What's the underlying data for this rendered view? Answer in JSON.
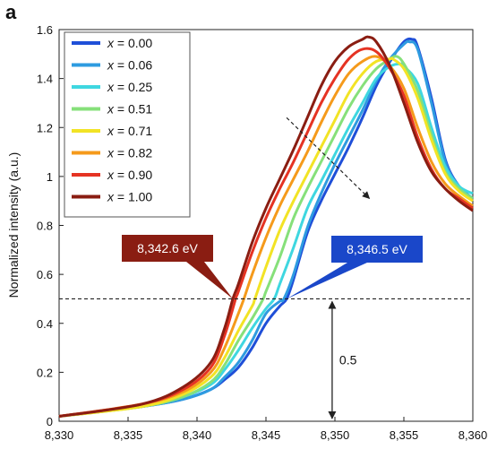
{
  "panel_label": "a",
  "chart_data": {
    "type": "line",
    "title": "",
    "xlabel": "",
    "ylabel": "Normalized intensity (a.u.)",
    "xlim": [
      8330,
      8360
    ],
    "ylim": [
      0,
      1.6
    ],
    "x_ticks": [
      8330,
      8335,
      8340,
      8345,
      8350,
      8355,
      8360
    ],
    "x_tick_labels": [
      "8,330",
      "8,335",
      "8,340",
      "8,345",
      "8,350",
      "8,355",
      "8,360"
    ],
    "y_ticks": [
      0,
      0.2,
      0.4,
      0.6,
      0.8,
      1.0,
      1.2,
      1.4,
      1.6
    ],
    "y_tick_labels": [
      "0",
      "0.2",
      "0.4",
      "0.6",
      "0.8",
      "1",
      "1.2",
      "1.4",
      "1.6"
    ],
    "legend_position": "top-left",
    "series": [
      {
        "name": "x = 0.00",
        "var": "x",
        "val": "0.00",
        "color": "#1f4fd8",
        "x": [
          8330,
          8336,
          8339,
          8341,
          8342,
          8343,
          8344,
          8345,
          8346,
          8346.5,
          8347,
          8348,
          8349,
          8350,
          8351,
          8352,
          8353,
          8354,
          8355,
          8355.6,
          8356,
          8357,
          8358,
          8359,
          8360
        ],
        "y": [
          0.02,
          0.06,
          0.09,
          0.13,
          0.17,
          0.22,
          0.3,
          0.4,
          0.47,
          0.5,
          0.58,
          0.77,
          0.9,
          1.01,
          1.12,
          1.24,
          1.37,
          1.47,
          1.55,
          1.56,
          1.53,
          1.32,
          1.07,
          0.96,
          0.91
        ]
      },
      {
        "name": "x = 0.06",
        "var": "x",
        "val": "0.06",
        "color": "#2e9be0",
        "x": [
          8330,
          8336,
          8339,
          8341,
          8342,
          8343,
          8344,
          8345,
          8346,
          8346.3,
          8347,
          8348,
          8349,
          8350,
          8351,
          8352,
          8353,
          8354,
          8355,
          8355.4,
          8356,
          8357,
          8358,
          8359,
          8360
        ],
        "y": [
          0.02,
          0.06,
          0.09,
          0.13,
          0.18,
          0.24,
          0.33,
          0.44,
          0.49,
          0.5,
          0.6,
          0.79,
          0.93,
          1.05,
          1.16,
          1.27,
          1.39,
          1.48,
          1.54,
          1.55,
          1.52,
          1.3,
          1.06,
          0.96,
          0.91
        ]
      },
      {
        "name": "x = 0.25",
        "var": "x",
        "val": "0.25",
        "color": "#3fd7e0",
        "x": [
          8330,
          8336,
          8339,
          8341,
          8342,
          8343,
          8344,
          8345,
          8345.6,
          8346,
          8347,
          8348,
          8349,
          8350,
          8351,
          8352,
          8353,
          8354,
          8354.8,
          8355,
          8356,
          8357,
          8358,
          8359,
          8360
        ],
        "y": [
          0.02,
          0.06,
          0.1,
          0.15,
          0.21,
          0.29,
          0.38,
          0.46,
          0.5,
          0.56,
          0.71,
          0.87,
          0.98,
          1.09,
          1.2,
          1.3,
          1.4,
          1.45,
          1.46,
          1.45,
          1.38,
          1.2,
          1.04,
          0.96,
          0.93
        ]
      },
      {
        "name": "x = 0.51",
        "var": "x",
        "val": "0.51",
        "color": "#86e07a",
        "x": [
          8330,
          8336,
          8339,
          8341,
          8342,
          8343,
          8344,
          8344.8,
          8345,
          8346,
          8347,
          8348,
          8349,
          8350,
          8351,
          8352,
          8353,
          8354,
          8354.5,
          8355,
          8356,
          8357,
          8358,
          8359,
          8360
        ],
        "y": [
          0.02,
          0.06,
          0.1,
          0.16,
          0.23,
          0.33,
          0.42,
          0.5,
          0.53,
          0.67,
          0.83,
          0.95,
          1.06,
          1.17,
          1.28,
          1.37,
          1.44,
          1.48,
          1.49,
          1.46,
          1.35,
          1.17,
          1.02,
          0.95,
          0.91
        ]
      },
      {
        "name": "x = 0.71",
        "var": "x",
        "val": "0.71",
        "color": "#f2e325",
        "x": [
          8330,
          8336,
          8339,
          8341,
          8342,
          8343,
          8344,
          8344.2,
          8345,
          8346,
          8347,
          8348,
          8349,
          8350,
          8351,
          8352,
          8353,
          8354,
          8354.2,
          8355,
          8356,
          8357,
          8358,
          8359,
          8360
        ],
        "y": [
          0.02,
          0.06,
          0.11,
          0.18,
          0.26,
          0.37,
          0.47,
          0.5,
          0.63,
          0.78,
          0.9,
          1.01,
          1.12,
          1.23,
          1.34,
          1.42,
          1.47,
          1.48,
          1.48,
          1.44,
          1.32,
          1.15,
          1.01,
          0.94,
          0.9
        ]
      },
      {
        "name": "x = 0.82",
        "var": "x",
        "val": "0.82",
        "color": "#f59a1b",
        "x": [
          8330,
          8336,
          8339,
          8341,
          8342,
          8343,
          8343.4,
          8344,
          8345,
          8346,
          8347,
          8348,
          8349,
          8350,
          8351,
          8352,
          8353,
          8354,
          8355,
          8356,
          8357,
          8358,
          8359,
          8360
        ],
        "y": [
          0.02,
          0.07,
          0.12,
          0.2,
          0.3,
          0.44,
          0.5,
          0.6,
          0.75,
          0.88,
          0.99,
          1.1,
          1.22,
          1.33,
          1.42,
          1.47,
          1.49,
          1.45,
          1.36,
          1.2,
          1.06,
          0.97,
          0.92,
          0.88
        ]
      },
      {
        "name": "x = 0.90",
        "var": "x",
        "val": "0.90",
        "color": "#e53323",
        "x": [
          8330,
          8336,
          8339,
          8341,
          8342,
          8342.8,
          8343,
          8344,
          8345,
          8346,
          8347,
          8348,
          8349,
          8350,
          8351,
          8352,
          8353,
          8354,
          8355,
          8356,
          8357,
          8358,
          8359,
          8360
        ],
        "y": [
          0.02,
          0.07,
          0.13,
          0.22,
          0.35,
          0.5,
          0.53,
          0.69,
          0.83,
          0.95,
          1.06,
          1.18,
          1.3,
          1.4,
          1.48,
          1.52,
          1.51,
          1.44,
          1.33,
          1.16,
          1.03,
          0.95,
          0.91,
          0.87
        ]
      },
      {
        "name": "x = 1.00",
        "var": "x",
        "val": "1.00",
        "color": "#8a1d12",
        "x": [
          8330,
          8336,
          8339,
          8341,
          8342,
          8342.6,
          8343,
          8344,
          8345,
          8346,
          8347,
          8348,
          8349,
          8350,
          8351,
          8352,
          8352.4,
          8353,
          8354,
          8355,
          8356,
          8357,
          8358,
          8359,
          8360
        ],
        "y": [
          0.02,
          0.07,
          0.14,
          0.24,
          0.38,
          0.5,
          0.56,
          0.73,
          0.87,
          0.99,
          1.11,
          1.24,
          1.37,
          1.47,
          1.53,
          1.56,
          1.57,
          1.55,
          1.45,
          1.3,
          1.14,
          1.02,
          0.95,
          0.9,
          0.86
        ]
      }
    ],
    "annotations": {
      "left_callout": {
        "text": "8,342.6 eV",
        "x": 8342.6,
        "y": 0.5,
        "color": "#8a1d12"
      },
      "right_callout": {
        "text": "8,346.5 eV",
        "x": 8346.5,
        "y": 0.5,
        "color": "#1a47c9"
      },
      "dashed_line_y": 0.5,
      "half_height_arrow": {
        "x": 8349.8,
        "from": 0,
        "to": 0.5,
        "label": "0.5"
      },
      "trend_arrow": {
        "from": [
          8346.5,
          1.24
        ],
        "to": [
          8352.5,
          0.91
        ]
      }
    }
  }
}
